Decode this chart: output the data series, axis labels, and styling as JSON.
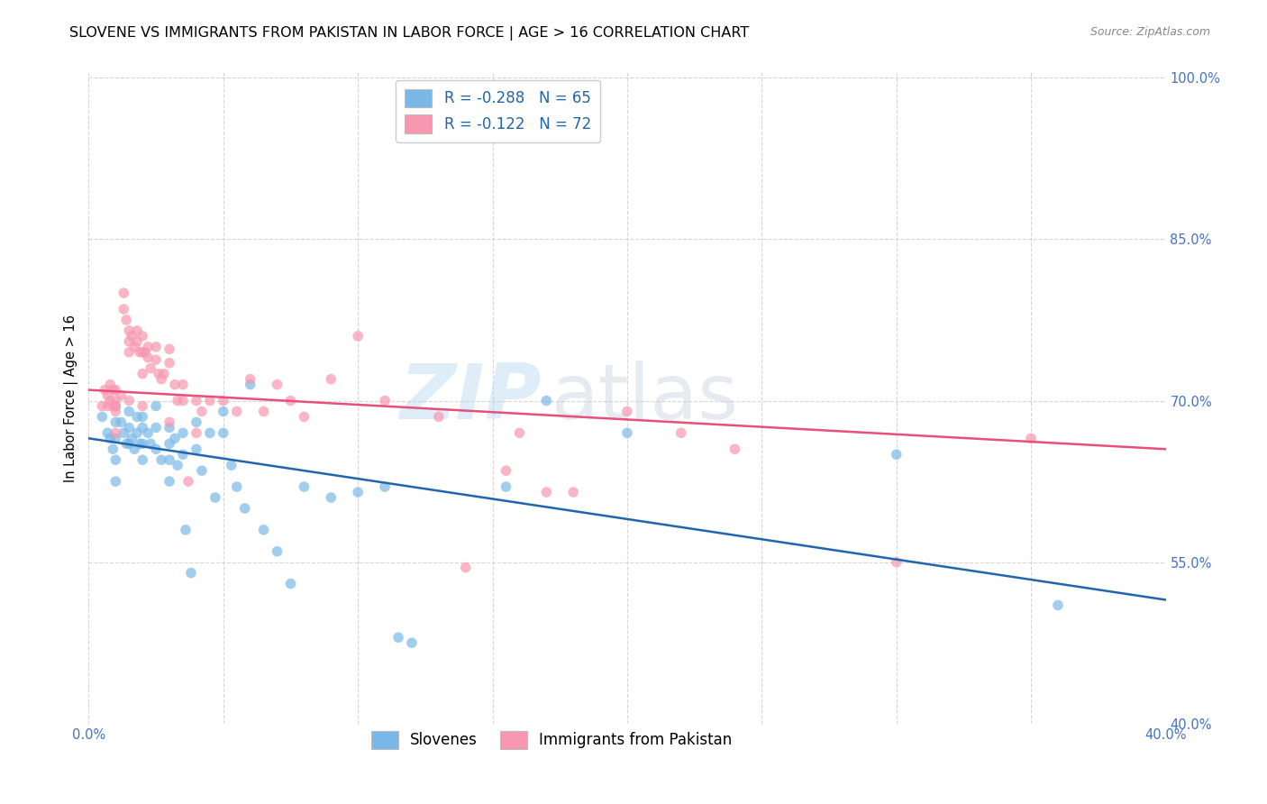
{
  "title": "SLOVENE VS IMMIGRANTS FROM PAKISTAN IN LABOR FORCE | AGE > 16 CORRELATION CHART",
  "source_text": "Source: ZipAtlas.com",
  "ylabel": "In Labor Force | Age > 16",
  "xlim": [
    0.0,
    0.4
  ],
  "ylim": [
    0.4,
    1.005
  ],
  "yticks": [
    0.4,
    0.55,
    0.7,
    0.85,
    1.0
  ],
  "xticks": [
    0.0,
    0.05,
    0.1,
    0.15,
    0.2,
    0.25,
    0.3,
    0.35,
    0.4
  ],
  "legend_entries": [
    {
      "label": "R = -0.288   N = 65",
      "color": "#a8c8e8"
    },
    {
      "label": "R = -0.122   N = 72",
      "color": "#f8b8c8"
    }
  ],
  "blue_scatter_x": [
    0.005,
    0.007,
    0.008,
    0.009,
    0.01,
    0.01,
    0.01,
    0.01,
    0.01,
    0.012,
    0.013,
    0.014,
    0.015,
    0.015,
    0.015,
    0.016,
    0.017,
    0.018,
    0.018,
    0.019,
    0.02,
    0.02,
    0.02,
    0.02,
    0.022,
    0.023,
    0.025,
    0.025,
    0.025,
    0.027,
    0.03,
    0.03,
    0.03,
    0.03,
    0.032,
    0.033,
    0.035,
    0.035,
    0.036,
    0.038,
    0.04,
    0.04,
    0.042,
    0.045,
    0.047,
    0.05,
    0.05,
    0.053,
    0.055,
    0.058,
    0.06,
    0.065,
    0.07,
    0.075,
    0.08,
    0.09,
    0.1,
    0.11,
    0.115,
    0.12,
    0.155,
    0.17,
    0.2,
    0.3,
    0.36
  ],
  "blue_scatter_y": [
    0.685,
    0.67,
    0.665,
    0.655,
    0.695,
    0.68,
    0.665,
    0.645,
    0.625,
    0.68,
    0.67,
    0.66,
    0.69,
    0.675,
    0.66,
    0.665,
    0.655,
    0.685,
    0.67,
    0.66,
    0.685,
    0.675,
    0.66,
    0.645,
    0.67,
    0.66,
    0.695,
    0.675,
    0.655,
    0.645,
    0.675,
    0.66,
    0.645,
    0.625,
    0.665,
    0.64,
    0.67,
    0.65,
    0.58,
    0.54,
    0.68,
    0.655,
    0.635,
    0.67,
    0.61,
    0.69,
    0.67,
    0.64,
    0.62,
    0.6,
    0.715,
    0.58,
    0.56,
    0.53,
    0.62,
    0.61,
    0.615,
    0.62,
    0.48,
    0.475,
    0.62,
    0.7,
    0.67,
    0.65,
    0.51
  ],
  "pink_scatter_x": [
    0.005,
    0.006,
    0.007,
    0.007,
    0.008,
    0.008,
    0.009,
    0.009,
    0.01,
    0.01,
    0.01,
    0.01,
    0.01,
    0.012,
    0.013,
    0.013,
    0.014,
    0.015,
    0.015,
    0.015,
    0.015,
    0.016,
    0.017,
    0.018,
    0.018,
    0.019,
    0.02,
    0.02,
    0.02,
    0.02,
    0.021,
    0.022,
    0.022,
    0.023,
    0.025,
    0.025,
    0.026,
    0.027,
    0.028,
    0.03,
    0.03,
    0.03,
    0.032,
    0.033,
    0.035,
    0.035,
    0.037,
    0.04,
    0.04,
    0.042,
    0.045,
    0.05,
    0.055,
    0.06,
    0.065,
    0.07,
    0.075,
    0.08,
    0.09,
    0.1,
    0.11,
    0.13,
    0.14,
    0.155,
    0.16,
    0.17,
    0.18,
    0.2,
    0.22,
    0.24,
    0.3,
    0.35
  ],
  "pink_scatter_y": [
    0.695,
    0.71,
    0.705,
    0.695,
    0.715,
    0.7,
    0.71,
    0.695,
    0.71,
    0.7,
    0.695,
    0.69,
    0.67,
    0.705,
    0.8,
    0.785,
    0.775,
    0.765,
    0.755,
    0.745,
    0.7,
    0.76,
    0.75,
    0.765,
    0.755,
    0.745,
    0.76,
    0.745,
    0.725,
    0.695,
    0.745,
    0.75,
    0.74,
    0.73,
    0.75,
    0.738,
    0.725,
    0.72,
    0.725,
    0.748,
    0.735,
    0.68,
    0.715,
    0.7,
    0.715,
    0.7,
    0.625,
    0.7,
    0.67,
    0.69,
    0.7,
    0.7,
    0.69,
    0.72,
    0.69,
    0.715,
    0.7,
    0.685,
    0.72,
    0.76,
    0.7,
    0.685,
    0.545,
    0.635,
    0.67,
    0.615,
    0.615,
    0.69,
    0.67,
    0.655,
    0.55,
    0.665
  ],
  "blue_line_x": [
    0.0,
    0.4
  ],
  "blue_line_y": [
    0.665,
    0.515
  ],
  "pink_line_x": [
    0.0,
    0.4
  ],
  "pink_line_y": [
    0.71,
    0.655
  ],
  "blue_color": "#7ab8e8",
  "pink_color": "#f898b0",
  "blue_line_color": "#2166ac",
  "pink_line_color": "#e8507a",
  "scatter_alpha": 0.7,
  "scatter_size": 70,
  "watermark_zip": "ZIP",
  "watermark_atlas": "atlas",
  "background_color": "#ffffff",
  "grid_color": "#cccccc",
  "axis_label_color": "#4472c4",
  "title_fontsize": 11.5,
  "axis_fontsize": 10.5
}
